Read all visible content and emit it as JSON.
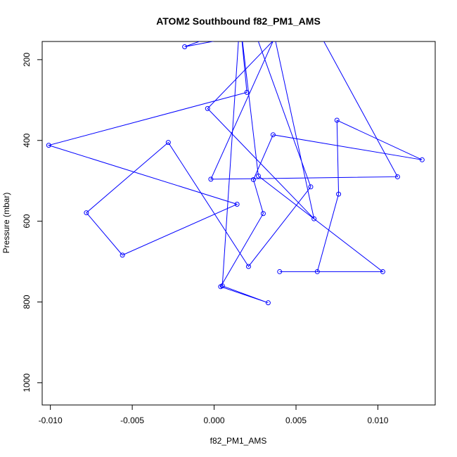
{
  "chart_data": {
    "type": "line",
    "title": "ATOM2 Southbound f82_PM1_AMS",
    "xlabel": "f82_PM1_AMS",
    "ylabel": "Pressure (mbar)",
    "xlim": [
      -0.0105,
      0.0135
    ],
    "ylim": [
      1055,
      155
    ],
    "y_reversed": true,
    "x_ticks": [
      -0.01,
      -0.005,
      0.0,
      0.005,
      0.01
    ],
    "x_tick_labels": [
      "-0.010",
      "-0.005",
      "0.000",
      "0.005",
      "0.010"
    ],
    "y_ticks": [
      200,
      400,
      600,
      800,
      1000
    ],
    "y_tick_labels": [
      "200",
      "400",
      "600",
      "800",
      "1000"
    ],
    "grid": false,
    "series": [
      {
        "color": "#0000ff",
        "marker": "open-circle",
        "x": [
          0.0015,
          0.0005,
          0.0033,
          0.0004,
          0.003,
          0.0024,
          0.0036,
          0.0127,
          0.0075,
          0.0076,
          0.0063,
          0.004,
          0.0103,
          0.0027,
          0.0016,
          0.002,
          -0.0101,
          0.0014,
          -0.0056,
          -0.0078,
          -0.0028,
          0.0021,
          0.0059,
          0.0023,
          0.0038,
          -0.0004,
          0.0061,
          0.0037,
          -0.0002,
          0.0112,
          0.0065,
          0.0058,
          -0.0018,
          0.0022
        ],
        "y": [
          145,
          760,
          802,
          762,
          581,
          497,
          386,
          448,
          350,
          533,
          725,
          725,
          725,
          488,
          110,
          281,
          412,
          558,
          684,
          579,
          405,
          712,
          515,
          110,
          145,
          321,
          594,
          145,
          496,
          490,
          140,
          110,
          168,
          110
        ]
      }
    ]
  }
}
